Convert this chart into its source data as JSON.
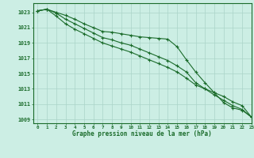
{
  "title": "Graphe pression niveau de la mer (hPa)",
  "background_color": "#cceee4",
  "plot_bg_color": "#cceee4",
  "grid_color": "#aad4c8",
  "line_color": "#1a6b2a",
  "spine_color": "#1a6b2a",
  "xlim": [
    -0.5,
    23
  ],
  "ylim": [
    1008.5,
    1024.2
  ],
  "yticks": [
    1009,
    1011,
    1013,
    1015,
    1017,
    1019,
    1021,
    1023
  ],
  "xticks": [
    0,
    1,
    2,
    3,
    4,
    5,
    6,
    7,
    8,
    9,
    10,
    11,
    12,
    13,
    14,
    15,
    16,
    17,
    18,
    19,
    20,
    21,
    22,
    23
  ],
  "hours": [
    0,
    1,
    2,
    3,
    4,
    5,
    6,
    7,
    8,
    9,
    10,
    11,
    12,
    13,
    14,
    15,
    16,
    17,
    18,
    19,
    20,
    21,
    22,
    23
  ],
  "line1": [
    1023.2,
    1023.4,
    1023.0,
    1022.6,
    1022.1,
    1021.5,
    1021.0,
    1020.5,
    1020.4,
    1020.2,
    1020.0,
    1019.8,
    1019.7,
    1019.6,
    1019.5,
    1018.5,
    1016.8,
    1015.2,
    1013.8,
    1012.5,
    1011.2,
    1010.5,
    1010.2,
    1009.3
  ],
  "line2": [
    1023.2,
    1023.4,
    1022.9,
    1022.1,
    1021.5,
    1020.9,
    1020.3,
    1019.7,
    1019.4,
    1019.0,
    1018.7,
    1018.2,
    1017.7,
    1017.2,
    1016.7,
    1016.0,
    1015.2,
    1013.8,
    1013.0,
    1012.2,
    1011.5,
    1010.8,
    1010.3,
    1009.3
  ],
  "line3": [
    1023.2,
    1023.4,
    1022.5,
    1021.5,
    1020.8,
    1020.2,
    1019.6,
    1019.0,
    1018.6,
    1018.2,
    1017.8,
    1017.3,
    1016.8,
    1016.3,
    1015.8,
    1015.2,
    1014.4,
    1013.5,
    1013.0,
    1012.5,
    1012.0,
    1011.3,
    1010.8,
    1009.3
  ]
}
